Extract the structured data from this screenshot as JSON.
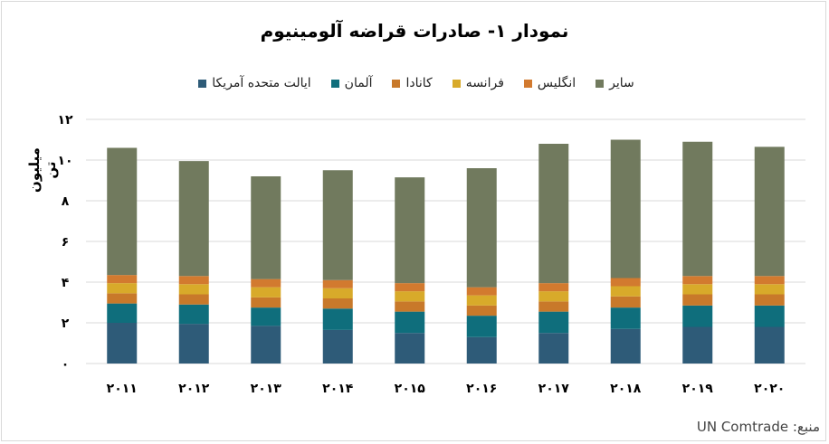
{
  "title": "نمودار ۱- صادرات قراضه آلومینیوم",
  "source": "منبع: UN Comtrade",
  "chart_data": {
    "type": "bar",
    "stacked": true,
    "title": "نمودار ۱- صادرات قراضه آلومینیوم",
    "ylabel": "میلیون تن",
    "xlabel": "",
    "ylim": [
      0,
      12
    ],
    "yticks": [
      0,
      2,
      4,
      6,
      8,
      10,
      12
    ],
    "ytick_labels": [
      "۰",
      "۲",
      "۴",
      "۶",
      "۸",
      "۱۰",
      "۱۲"
    ],
    "categories": [
      "۲۰۱۱",
      "۲۰۱۲",
      "۲۰۱۳",
      "۲۰۱۴",
      "۲۰۱۵",
      "۲۰۱۶",
      "۲۰۱۷",
      "۲۰۱۸",
      "۲۰۱۹",
      "۲۰۲۰"
    ],
    "grid": true,
    "legend_position": "top",
    "series": [
      {
        "name": "ایالت متحده آمریکا",
        "color": "#2e5b78",
        "values": [
          2.0,
          1.95,
          1.85,
          1.65,
          1.5,
          1.3,
          1.5,
          1.7,
          1.8,
          1.8
        ]
      },
      {
        "name": "آلمان",
        "color": "#0f6e7c",
        "values": [
          0.95,
          0.95,
          0.9,
          1.05,
          1.05,
          1.05,
          1.05,
          1.05,
          1.05,
          1.05
        ]
      },
      {
        "name": "کانادا",
        "color": "#c8792a",
        "values": [
          0.5,
          0.5,
          0.5,
          0.5,
          0.5,
          0.5,
          0.5,
          0.55,
          0.55,
          0.55
        ]
      },
      {
        "name": "فرانسه",
        "color": "#d8aa2a",
        "values": [
          0.5,
          0.5,
          0.5,
          0.5,
          0.5,
          0.5,
          0.5,
          0.5,
          0.5,
          0.5
        ]
      },
      {
        "name": "انگلیس",
        "color": "#d27a2f",
        "values": [
          0.4,
          0.4,
          0.4,
          0.4,
          0.4,
          0.4,
          0.4,
          0.4,
          0.4,
          0.4
        ]
      },
      {
        "name": "سایر",
        "color": "#717a5e",
        "values": [
          6.25,
          5.65,
          5.05,
          5.4,
          5.2,
          5.85,
          6.85,
          6.8,
          6.6,
          6.35
        ]
      }
    ]
  }
}
